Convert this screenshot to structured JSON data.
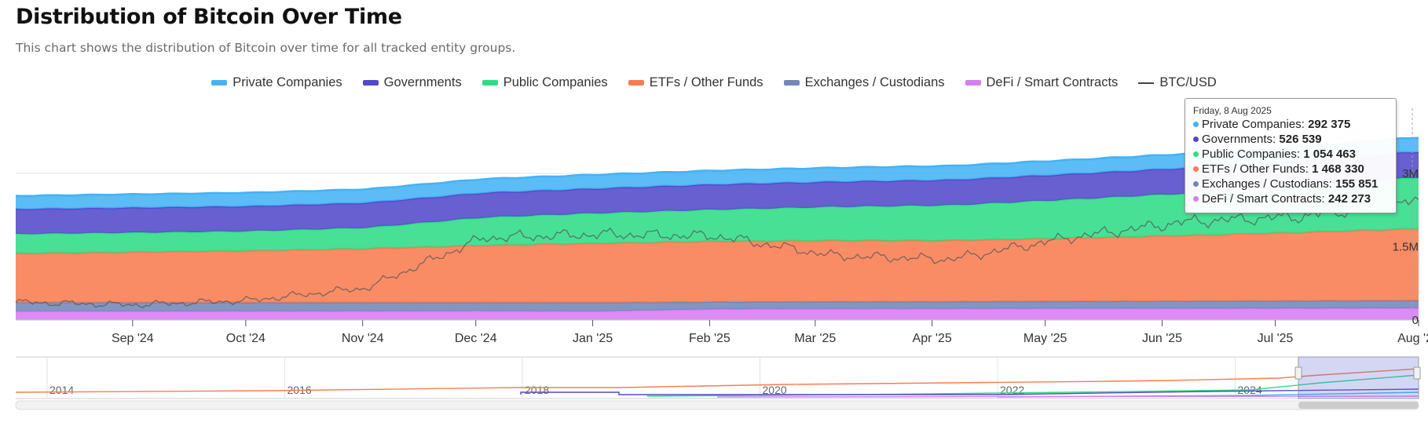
{
  "title": "Distribution of Bitcoin Over Time",
  "subtitle": "This chart shows the distribution of Bitcoin over time for all tracked entity groups.",
  "legend": [
    {
      "label": "Private Companies",
      "color": "#44b3f5",
      "type": "area"
    },
    {
      "label": "Governments",
      "color": "#5349c9",
      "type": "area"
    },
    {
      "label": "Public Companies",
      "color": "#2fdc86",
      "type": "area"
    },
    {
      "label": "ETFs / Other Funds",
      "color": "#f97c50",
      "type": "area"
    },
    {
      "label": "Exchanges / Custodians",
      "color": "#7287b7",
      "type": "area"
    },
    {
      "label": "DeFi / Smart Contracts",
      "color": "#d77cf2",
      "type": "area"
    },
    {
      "label": "BTC/USD",
      "color": "#444444",
      "type": "line"
    }
  ],
  "tooltip": {
    "date": "Friday, 8 Aug 2025",
    "rows": [
      {
        "label": "Private Companies",
        "value": "292 375",
        "color": "#44b3f5"
      },
      {
        "label": "Governments",
        "value": "526 539",
        "color": "#5349c9"
      },
      {
        "label": "Public Companies",
        "value": "1 054 463",
        "color": "#2fdc86"
      },
      {
        "label": "ETFs / Other Funds",
        "value": "1 468 330",
        "color": "#f97c50"
      },
      {
        "label": "Exchanges / Custodians",
        "value": "155 851",
        "color": "#7287b7"
      },
      {
        "label": "DeFi / Smart Contracts",
        "value": "242 273",
        "color": "#d77cf2"
      }
    ]
  },
  "chart_data": {
    "type": "area",
    "stacked": true,
    "x": [
      "2024-08-01",
      "2024-09-01",
      "2024-10-01",
      "2024-11-01",
      "2024-12-01",
      "2025-01-01",
      "2025-02-01",
      "2025-03-01",
      "2025-04-01",
      "2025-05-01",
      "2025-06-01",
      "2025-07-01",
      "2025-08-08"
    ],
    "x_tick_labels": [
      "Sep '24",
      "Oct '24",
      "Nov '24",
      "Dec '24",
      "Jan '25",
      "Feb '25",
      "Mar '25",
      "Apr '25",
      "May '25",
      "Jun '25",
      "Jul '25",
      "Aug '25"
    ],
    "y_tick_labels": [
      "0",
      "1.5M",
      "3M"
    ],
    "ylim": [
      0,
      4300000
    ],
    "series": [
      {
        "name": "DeFi / Smart Contracts",
        "color": "#d77cf2",
        "values": [
          180000,
          180000,
          182000,
          183000,
          185000,
          180000,
          225000,
          230000,
          232000,
          236000,
          238000,
          240000,
          242273
        ]
      },
      {
        "name": "Exchanges / Custodians",
        "color": "#7287b7",
        "values": [
          180000,
          178000,
          176000,
          175000,
          173000,
          178000,
          145000,
          145000,
          145000,
          148000,
          150000,
          153000,
          155851
        ]
      },
      {
        "name": "ETFs / Other Funds",
        "color": "#f97c50",
        "values": [
          1000000,
          1030000,
          1060000,
          1100000,
          1170000,
          1210000,
          1240000,
          1250000,
          1250000,
          1290000,
          1340000,
          1400000,
          1468330
        ]
      },
      {
        "name": "Public Companies",
        "color": "#2fdc86",
        "values": [
          400000,
          400000,
          400000,
          430000,
          570000,
          620000,
          650000,
          690000,
          720000,
          790000,
          860000,
          940000,
          1054463
        ]
      },
      {
        "name": "Governments",
        "color": "#5349c9",
        "values": [
          510000,
          510000,
          510000,
          510000,
          505000,
          505000,
          515000,
          515000,
          520000,
          520000,
          522000,
          524000,
          526539
        ]
      },
      {
        "name": "Private Companies",
        "color": "#44b3f5",
        "values": [
          270000,
          275000,
          277000,
          278000,
          282000,
          283000,
          284000,
          286000,
          287000,
          288000,
          289000,
          290000,
          292375
        ]
      }
    ],
    "btc_usd": {
      "name": "BTC/USD",
      "color": "#555555",
      "values": [
        60000,
        58500,
        61000,
        68000,
        96000,
        98000,
        97000,
        86000,
        84000,
        96000,
        105000,
        108000,
        116500
      ]
    },
    "navigator": {
      "tick_labels": [
        "2014",
        "2016",
        "2018",
        "2020",
        "2022",
        "2024"
      ],
      "x": [
        2014,
        2016,
        2018,
        2020,
        2022,
        2024
      ]
    },
    "legend_position": "top-center",
    "grid": true
  }
}
